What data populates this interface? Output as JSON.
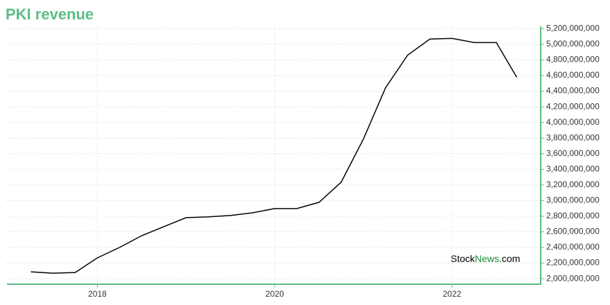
{
  "chart_data": {
    "type": "line",
    "title": "PKI revenue",
    "watermark": [
      "Stock",
      "News",
      ".com"
    ],
    "x": [
      2017.25,
      2017.5,
      2017.75,
      2018.0,
      2018.25,
      2018.5,
      2018.75,
      2019.0,
      2019.25,
      2019.5,
      2019.75,
      2020.0,
      2020.25,
      2020.5,
      2020.75,
      2021.0,
      2021.25,
      2021.5,
      2021.75,
      2022.0,
      2022.25,
      2022.5,
      2022.73
    ],
    "series": [
      {
        "name": "PKI revenue",
        "color": "#000000",
        "values": [
          2089000000,
          2071000000,
          2080000000,
          2267000000,
          2400000000,
          2551000000,
          2667000000,
          2782000000,
          2791000000,
          2809000000,
          2844000000,
          2898000000,
          2898000000,
          2978000000,
          3236000000,
          3787000000,
          4444000000,
          4862000000,
          5067000000,
          5076000000,
          5022000000,
          5022000000,
          4578000000
        ]
      }
    ],
    "xlim": [
      2016.98,
      2023.0
    ],
    "xticks": [
      2018,
      2020,
      2022
    ],
    "ylim": [
      1930000000,
      5230000000
    ],
    "yticks": [
      {
        "value": 2000000000,
        "label": "2,000,000,000"
      },
      {
        "value": 2200000000,
        "label": "2,200,000,000"
      },
      {
        "value": 2400000000,
        "label": "2,400,000,000"
      },
      {
        "value": 2600000000,
        "label": "2,600,000,000"
      },
      {
        "value": 2800000000,
        "label": "2,800,000,000"
      },
      {
        "value": 3000000000,
        "label": "3,000,000,000"
      },
      {
        "value": 3200000000,
        "label": "3,200,000,000"
      },
      {
        "value": 3400000000,
        "label": "3,400,000,000"
      },
      {
        "value": 3600000000,
        "label": "3,600,000,000"
      },
      {
        "value": 3800000000,
        "label": "3,800,000,000"
      },
      {
        "value": 4000000000,
        "label": "4,000,000,000"
      },
      {
        "value": 4200000000,
        "label": "4,200,000,000"
      },
      {
        "value": 4400000000,
        "label": "4,400,000,000"
      },
      {
        "value": 4600000000,
        "label": "4,600,000,000"
      },
      {
        "value": 4800000000,
        "label": "4,800,000,000"
      },
      {
        "value": 5000000000,
        "label": "5,000,000,000"
      },
      {
        "value": 5200000000,
        "label": "5,200,000,000"
      }
    ],
    "grid": true
  }
}
